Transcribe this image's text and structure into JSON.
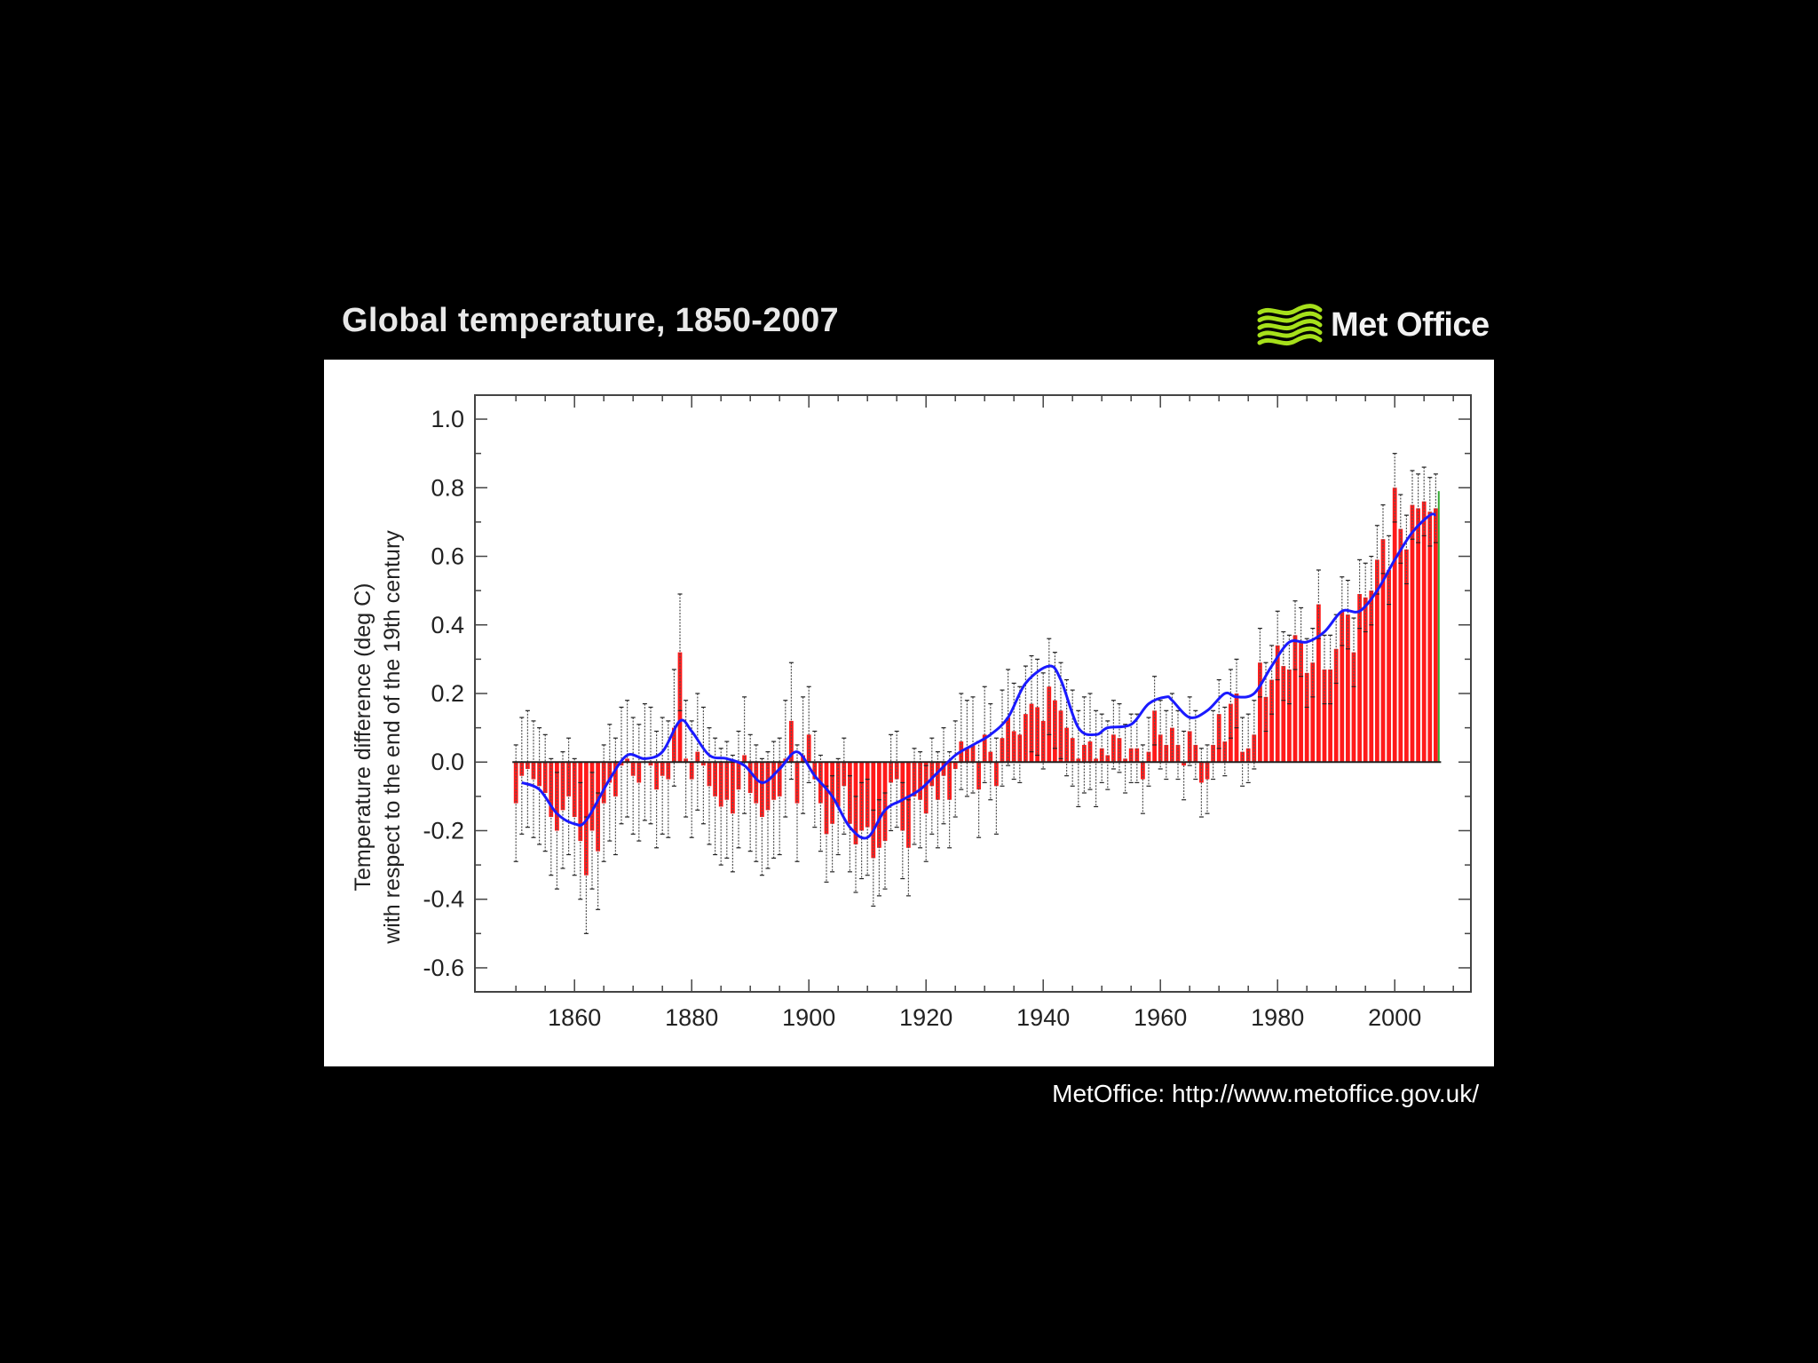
{
  "header": {
    "title": "Global temperature, 1850-2007",
    "logo_text": "Met Office",
    "logo_icon": "met-office-wave-icon",
    "logo_color": "#a6e01b"
  },
  "footer": {
    "source": "MetOffice: http://www.metoffice.gov.uk/"
  },
  "chart_data": {
    "type": "bar",
    "title": "Global temperature, 1850-2007",
    "xlabel": "",
    "ylabel_lines": [
      "Temperature difference (deg C)",
      "with respect to the end of the 19th century"
    ],
    "xlim": [
      1843,
      2013
    ],
    "ylim": [
      -0.67,
      1.07
    ],
    "xticks": [
      1860,
      1880,
      1900,
      1920,
      1940,
      1960,
      1980,
      2000
    ],
    "yticks": [
      1.0,
      0.8,
      0.6,
      0.4,
      0.2,
      0.0,
      -0.2,
      -0.4,
      -0.6
    ],
    "ytick_labels": [
      "1.0",
      "0.8",
      "0.6",
      "0.4",
      "0.2",
      "0.0",
      "-0.2",
      "-0.4",
      "-0.6"
    ],
    "xtick_labels": [
      "1860",
      "1880",
      "1900",
      "1920",
      "1940",
      "1960",
      "1980",
      "2000"
    ],
    "colors": {
      "bar": "#ff1a1a",
      "error": "#555555",
      "smooth": "#1a1aff",
      "last_bar_line": "#33aa33"
    },
    "annual": {
      "start_year": 1850,
      "values": [
        -0.12,
        -0.04,
        -0.02,
        -0.05,
        -0.07,
        -0.09,
        -0.16,
        -0.2,
        -0.14,
        -0.1,
        -0.16,
        -0.23,
        -0.33,
        -0.2,
        -0.26,
        -0.12,
        -0.06,
        -0.1,
        -0.01,
        0.01,
        -0.04,
        -0.06,
        0.0,
        -0.01,
        -0.08,
        -0.04,
        -0.05,
        0.1,
        0.32,
        0.01,
        -0.05,
        0.03,
        -0.01,
        -0.07,
        -0.1,
        -0.13,
        -0.11,
        -0.15,
        -0.08,
        0.02,
        -0.09,
        -0.12,
        -0.16,
        -0.14,
        -0.11,
        -0.1,
        0.01,
        0.12,
        -0.12,
        0.02,
        0.08,
        -0.05,
        -0.12,
        -0.21,
        -0.18,
        -0.13,
        -0.07,
        -0.18,
        -0.24,
        -0.2,
        -0.19,
        -0.28,
        -0.25,
        -0.23,
        -0.06,
        -0.05,
        -0.2,
        -0.25,
        -0.1,
        -0.11,
        -0.15,
        -0.07,
        -0.11,
        -0.04,
        -0.11,
        -0.02,
        0.06,
        0.04,
        0.05,
        -0.08,
        0.08,
        0.03,
        -0.07,
        0.07,
        0.13,
        0.09,
        0.08,
        0.14,
        0.17,
        0.16,
        0.12,
        0.22,
        0.18,
        0.15,
        0.1,
        0.07,
        0.01,
        0.05,
        0.06,
        0.01,
        0.04,
        0.02,
        0.08,
        0.07,
        0.01,
        0.04,
        0.04,
        -0.05,
        0.03,
        0.15,
        0.08,
        0.05,
        0.1,
        0.05,
        -0.01,
        0.09,
        0.05,
        -0.06,
        -0.05,
        0.05,
        0.14,
        0.06,
        0.17,
        0.2,
        0.03,
        0.04,
        0.08,
        0.29,
        0.19,
        0.24,
        0.34,
        0.28,
        0.27,
        0.37,
        0.35,
        0.26,
        0.29,
        0.46,
        0.27,
        0.27,
        0.33,
        0.44,
        0.43,
        0.32,
        0.49,
        0.48,
        0.5,
        0.59,
        0.65,
        0.56,
        0.8,
        0.68,
        0.62,
        0.75,
        0.74,
        0.76,
        0.73,
        0.74
      ]
    },
    "smoothed": {
      "years": [
        1851,
        1854,
        1857,
        1860,
        1862,
        1866,
        1869,
        1872,
        1875,
        1878,
        1880,
        1883,
        1886,
        1889,
        1892,
        1895,
        1898,
        1901,
        1904,
        1907,
        1910,
        1913,
        1916,
        1919,
        1922,
        1925,
        1928,
        1931,
        1934,
        1937,
        1941,
        1943,
        1946,
        1949,
        1951,
        1955,
        1958,
        1961,
        1962,
        1965,
        1968,
        1971,
        1973,
        1976,
        1979,
        1982,
        1985,
        1988,
        1991,
        1994,
        1997,
        2000,
        2003,
        2006,
        2007
      ],
      "values": [
        -0.06,
        -0.08,
        -0.15,
        -0.18,
        -0.17,
        -0.05,
        0.02,
        0.01,
        0.03,
        0.12,
        0.09,
        0.02,
        0.01,
        -0.01,
        -0.06,
        -0.02,
        0.03,
        -0.04,
        -0.1,
        -0.19,
        -0.22,
        -0.14,
        -0.11,
        -0.08,
        -0.03,
        0.02,
        0.05,
        0.08,
        0.13,
        0.23,
        0.28,
        0.24,
        0.1,
        0.08,
        0.1,
        0.11,
        0.17,
        0.19,
        0.18,
        0.13,
        0.15,
        0.2,
        0.19,
        0.2,
        0.28,
        0.35,
        0.35,
        0.38,
        0.44,
        0.44,
        0.5,
        0.59,
        0.67,
        0.72,
        0.72
      ]
    }
  }
}
